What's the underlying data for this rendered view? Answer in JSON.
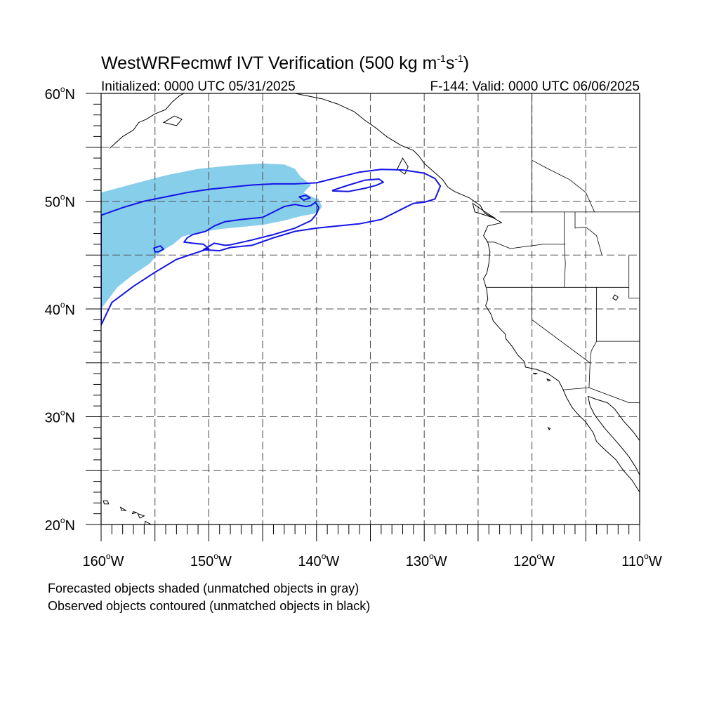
{
  "title": {
    "main": "WestWRFecmwf IVT Verification (500 kg m",
    "sup1": "-1",
    "mid": "s",
    "sup2": "-1",
    "end": ")"
  },
  "subtitle_left": "Initialized: 0000 UTC 05/31/2025",
  "subtitle_right": "F-144: Valid: 0000 UTC 06/06/2025",
  "map": {
    "lon_range": [
      -160,
      -110
    ],
    "lat_range": [
      20,
      60
    ],
    "grid_lon_step": 5,
    "grid_lat_step": 5,
    "lat_labels": [
      {
        "lat": 60,
        "text": "60",
        "suffix": "N"
      },
      {
        "lat": 50,
        "text": "50",
        "suffix": "N"
      },
      {
        "lat": 40,
        "text": "40",
        "suffix": "N"
      },
      {
        "lat": 30,
        "text": "30",
        "suffix": "N"
      },
      {
        "lat": 20,
        "text": "20",
        "suffix": "N"
      }
    ],
    "lon_labels": [
      {
        "lon": -160,
        "text": "160",
        "suffix": "W"
      },
      {
        "lon": -150,
        "text": "150",
        "suffix": "W"
      },
      {
        "lon": -140,
        "text": "140",
        "suffix": "W"
      },
      {
        "lon": -130,
        "text": "130",
        "suffix": "W"
      },
      {
        "lon": -120,
        "text": "120",
        "suffix": "W"
      },
      {
        "lon": -110,
        "text": "110",
        "suffix": "W"
      }
    ],
    "colors": {
      "forecast_fill": "#87CEEB",
      "observed_contour": "#1414E6",
      "coastline": "#000000",
      "grid": "#555555"
    },
    "forecast_object": [
      [
        -160,
        50.8
      ],
      [
        -157,
        51.6
      ],
      [
        -154,
        52.4
      ],
      [
        -151,
        53.0
      ],
      [
        -148,
        53.3
      ],
      [
        -145,
        53.5
      ],
      [
        -143,
        53.4
      ],
      [
        -142,
        53.0
      ],
      [
        -141.5,
        52.3
      ],
      [
        -140.5,
        51.5
      ],
      [
        -141.2,
        50.8
      ],
      [
        -140.2,
        50.3
      ],
      [
        -139.8,
        50.2
      ],
      [
        -139.5,
        49.5
      ],
      [
        -139.9,
        48.9
      ],
      [
        -141.5,
        48.6
      ],
      [
        -143,
        48.2
      ],
      [
        -145,
        47.8
      ],
      [
        -147,
        47.6
      ],
      [
        -149,
        47.4
      ],
      [
        -151,
        47.1
      ],
      [
        -152.5,
        46.7
      ],
      [
        -153.3,
        46.0
      ],
      [
        -154,
        45.6
      ],
      [
        -154.8,
        45.0
      ],
      [
        -155.5,
        44.2
      ],
      [
        -157,
        43.2
      ],
      [
        -158.5,
        42.0
      ],
      [
        -160,
        40.0
      ]
    ],
    "observed_objects": [
      [
        [
          -160,
          48.7
        ],
        [
          -158,
          49.4
        ],
        [
          -156,
          50.0
        ],
        [
          -154,
          50.4
        ],
        [
          -152,
          50.8
        ],
        [
          -150,
          51.1
        ],
        [
          -148,
          51.3
        ],
        [
          -146,
          51.5
        ],
        [
          -144,
          51.6
        ],
        [
          -142,
          51.6
        ],
        [
          -140,
          51.7
        ],
        [
          -138,
          52.2
        ],
        [
          -136,
          52.7
        ],
        [
          -134,
          52.95
        ],
        [
          -132,
          52.9
        ],
        [
          -130,
          52.6
        ],
        [
          -129,
          52.1
        ],
        [
          -128.5,
          51.4
        ],
        [
          -129,
          50.2
        ],
        [
          -130,
          49.9
        ],
        [
          -131,
          49.8
        ],
        [
          -132,
          49.3
        ],
        [
          -134,
          48.3
        ],
        [
          -136,
          47.9
        ],
        [
          -138,
          47.7
        ],
        [
          -140,
          47.5
        ],
        [
          -142,
          47.2
        ],
        [
          -144,
          46.6
        ],
        [
          -146,
          45.9
        ],
        [
          -148,
          45.7
        ],
        [
          -149,
          45.4
        ],
        [
          -150.5,
          45.5
        ],
        [
          -150,
          45.8
        ],
        [
          -149.5,
          46.1
        ],
        [
          -148.5,
          45.9
        ],
        [
          -148,
          45.95
        ],
        [
          -146,
          46.4
        ],
        [
          -144,
          46.9
        ],
        [
          -142,
          47.5
        ],
        [
          -140.5,
          48.2
        ],
        [
          -140,
          48.8
        ],
        [
          -139.8,
          49.4
        ],
        [
          -140.1,
          49.9
        ],
        [
          -140.5,
          49.6
        ],
        [
          -141,
          49.5
        ],
        [
          -142,
          49.7
        ],
        [
          -143,
          49.5
        ],
        [
          -144,
          49.0
        ],
        [
          -145,
          48.5
        ],
        [
          -147,
          48.3
        ],
        [
          -148.5,
          48.1
        ],
        [
          -149.5,
          47.7
        ],
        [
          -150.3,
          47.2
        ],
        [
          -151.5,
          46.9
        ],
        [
          -152,
          46.6
        ],
        [
          -152.3,
          46.2
        ],
        [
          -151.5,
          46.1
        ],
        [
          -150.5,
          46.0
        ],
        [
          -150,
          45.6
        ],
        [
          -151.5,
          45.1
        ],
        [
          -153,
          44.6
        ],
        [
          -155,
          43.4
        ],
        [
          -157,
          42.1
        ],
        [
          -159,
          40.6
        ],
        [
          -160,
          38.5
        ]
      ],
      [
        [
          -138.5,
          51.0
        ],
        [
          -137,
          51.5
        ],
        [
          -135.5,
          51.95
        ],
        [
          -134.2,
          52.05
        ],
        [
          -133.8,
          51.75
        ],
        [
          -134.5,
          51.45
        ],
        [
          -135.5,
          51.2
        ],
        [
          -137,
          50.9
        ],
        [
          -138.5,
          50.95
        ]
      ],
      [
        [
          -154.7,
          45.3
        ],
        [
          -154.2,
          45.55
        ],
        [
          -154.5,
          45.85
        ],
        [
          -155.1,
          45.65
        ],
        [
          -155.0,
          45.3
        ],
        [
          -154.7,
          45.3
        ]
      ],
      [
        [
          -141.6,
          50.4
        ],
        [
          -141.0,
          50.55
        ],
        [
          -140.6,
          50.3
        ],
        [
          -141.2,
          50.1
        ],
        [
          -141.6,
          50.4
        ]
      ]
    ],
    "coastline": [
      [
        -159.2,
        54.9
      ],
      [
        -158.0,
        56.0
      ],
      [
        -157.0,
        56.6
      ],
      [
        -156.5,
        57.3
      ],
      [
        -155.8,
        57.6
      ],
      [
        -155.0,
        58.1
      ],
      [
        -154.0,
        58.5
      ],
      [
        -153.4,
        59.2
      ],
      [
        -152.7,
        59.8
      ],
      [
        -152.3,
        60.0
      ]
    ],
    "coastline_east": [
      [
        -142.0,
        60.0
      ],
      [
        -140.5,
        59.7
      ],
      [
        -139.5,
        59.5
      ],
      [
        -138.0,
        59.0
      ],
      [
        -136.5,
        58.3
      ],
      [
        -135.5,
        57.5
      ],
      [
        -134.5,
        56.8
      ],
      [
        -133.5,
        56.0
      ],
      [
        -132.2,
        55.2
      ],
      [
        -131.0,
        54.7
      ],
      [
        -130.5,
        54.2
      ],
      [
        -130.0,
        53.5
      ],
      [
        -129.2,
        52.8
      ],
      [
        -128.3,
        52.0
      ],
      [
        -127.8,
        51.3
      ],
      [
        -127.2,
        50.9
      ],
      [
        -125.8,
        50.3
      ],
      [
        -124.8,
        49.6
      ],
      [
        -124.4,
        48.9
      ],
      [
        -123.5,
        48.4
      ],
      [
        -122.8,
        48.0
      ],
      [
        -124.1,
        47.7
      ],
      [
        -124.5,
        46.8
      ],
      [
        -124.1,
        46.2
      ],
      [
        -123.9,
        45.3
      ],
      [
        -124.0,
        44.2
      ],
      [
        -124.2,
        43.3
      ],
      [
        -124.5,
        42.8
      ],
      [
        -124.2,
        41.8
      ],
      [
        -124.1,
        40.9
      ],
      [
        -124.3,
        40.3
      ],
      [
        -123.8,
        39.5
      ],
      [
        -123.6,
        38.9
      ],
      [
        -122.9,
        38.1
      ],
      [
        -122.5,
        37.7
      ],
      [
        -122.4,
        37.2
      ],
      [
        -121.9,
        36.6
      ],
      [
        -121.3,
        35.7
      ],
      [
        -120.7,
        35.1
      ],
      [
        -120.6,
        34.6
      ],
      [
        -119.6,
        34.4
      ],
      [
        -118.5,
        34.0
      ],
      [
        -117.5,
        33.3
      ],
      [
        -117.1,
        32.5
      ],
      [
        -116.8,
        31.8
      ],
      [
        -116.3,
        30.9
      ],
      [
        -115.8,
        30.3
      ],
      [
        -115.0,
        29.5
      ],
      [
        -114.3,
        28.5
      ],
      [
        -114.0,
        27.7
      ],
      [
        -113.3,
        27.0
      ],
      [
        -112.2,
        26.0
      ],
      [
        -111.5,
        25.0
      ],
      [
        -110.7,
        24.1
      ],
      [
        -110.0,
        23.0
      ]
    ],
    "gulf_coast": [
      [
        -114.8,
        31.9
      ],
      [
        -114.6,
        31.0
      ],
      [
        -114.2,
        30.2
      ],
      [
        -113.3,
        29.0
      ],
      [
        -112.6,
        28.2
      ],
      [
        -111.9,
        27.4
      ],
      [
        -111.0,
        26.3
      ],
      [
        -110.3,
        25.2
      ],
      [
        -110.0,
        24.6
      ]
    ],
    "mexico_coast_east": [
      [
        -110.0,
        27.8
      ],
      [
        -110.6,
        28.6
      ],
      [
        -111.5,
        29.6
      ],
      [
        -112.3,
        30.7
      ],
      [
        -113.0,
        31.3
      ],
      [
        -114.0,
        31.6
      ],
      [
        -114.8,
        31.9
      ]
    ],
    "borders": [
      [
        [
          -123.0,
          49.0
        ],
        [
          -110.0,
          49.0
        ]
      ],
      [
        [
          -124.2,
          46.2
        ],
        [
          -123.5,
          46.2
        ],
        [
          -122.0,
          45.6
        ],
        [
          -119.0,
          46.0
        ],
        [
          -116.9,
          46.0
        ]
      ],
      [
        [
          -117.0,
          49.0
        ],
        [
          -117.0,
          46.0
        ],
        [
          -116.9,
          44.2
        ],
        [
          -117.0,
          42.0
        ]
      ],
      [
        [
          -124.2,
          42.0
        ],
        [
          -111.0,
          42.0
        ]
      ],
      [
        [
          -120.0,
          42.0
        ],
        [
          -120.0,
          39.0
        ],
        [
          -114.6,
          35.0
        ],
        [
          -114.7,
          32.7
        ]
      ],
      [
        [
          -114.0,
          42.0
        ],
        [
          -114.0,
          37.0
        ],
        [
          -114.5,
          36.1
        ],
        [
          -114.6,
          35.0
        ]
      ],
      [
        [
          -114.0,
          37.0
        ],
        [
          -110.0,
          37.0
        ]
      ],
      [
        [
          -111.0,
          45.0
        ],
        [
          -111.0,
          41.0
        ],
        [
          -110.0,
          41.0
        ]
      ],
      [
        [
          -117.1,
          32.5
        ],
        [
          -114.7,
          32.7
        ],
        [
          -111.0,
          31.3
        ],
        [
          -110.0,
          31.3
        ]
      ],
      [
        [
          -116.0,
          49.0
        ],
        [
          -116.0,
          47.5
        ],
        [
          -115.0,
          47.6
        ],
        [
          -114.0,
          46.8
        ],
        [
          -113.5,
          45.0
        ]
      ]
    ],
    "canada_interior": [
      [
        [
          -120.0,
          60.0
        ],
        [
          -120.0,
          49.0
        ]
      ],
      [
        [
          -120.0,
          53.8
        ],
        [
          -118.5,
          53.0
        ],
        [
          -116.5,
          52.0
        ],
        [
          -115.0,
          50.8
        ],
        [
          -114.2,
          49.0
        ]
      ]
    ],
    "islands": [
      [
        [
          -159.8,
          22.2
        ],
        [
          -159.4,
          22.2
        ],
        [
          -159.3,
          21.9
        ],
        [
          -159.7,
          21.9
        ],
        [
          -159.8,
          22.2
        ]
      ],
      [
        [
          -158.2,
          21.6
        ],
        [
          -157.7,
          21.3
        ],
        [
          -158.1,
          21.3
        ],
        [
          -158.2,
          21.6
        ]
      ],
      [
        [
          -157.0,
          21.2
        ],
        [
          -156.7,
          21.1
        ],
        [
          -157.1,
          21.0
        ],
        [
          -157.0,
          21.2
        ]
      ],
      [
        [
          -156.6,
          21.0
        ],
        [
          -156.0,
          20.8
        ],
        [
          -156.4,
          20.6
        ],
        [
          -156.6,
          21.0
        ]
      ],
      [
        [
          -155.9,
          20.3
        ],
        [
          -155.0,
          19.8
        ],
        [
          -155.6,
          19.0
        ],
        [
          -156.0,
          19.7
        ],
        [
          -155.9,
          20.3
        ]
      ],
      [
        [
          -125.5,
          49.8
        ],
        [
          -124.5,
          49.1
        ],
        [
          -123.4,
          48.4
        ],
        [
          -124.0,
          48.6
        ],
        [
          -125.3,
          49.0
        ],
        [
          -125.5,
          49.8
        ]
      ],
      [
        [
          -132.0,
          54.0
        ],
        [
          -131.5,
          53.2
        ],
        [
          -131.8,
          52.5
        ],
        [
          -132.5,
          53.0
        ],
        [
          -132.0,
          54.0
        ]
      ],
      [
        [
          -153.2,
          57.9
        ],
        [
          -152.5,
          57.6
        ],
        [
          -153.0,
          57.0
        ],
        [
          -154.2,
          57.3
        ],
        [
          -153.2,
          57.9
        ]
      ],
      [
        [
          -118.6,
          33.5
        ],
        [
          -118.3,
          33.4
        ],
        [
          -118.5,
          33.3
        ],
        [
          -118.6,
          33.5
        ]
      ],
      [
        [
          -119.9,
          34.05
        ],
        [
          -119.5,
          34.0
        ],
        [
          -119.7,
          33.95
        ],
        [
          -119.9,
          34.05
        ]
      ],
      [
        [
          -118.5,
          29.0
        ],
        [
          -118.3,
          28.9
        ],
        [
          -118.4,
          28.8
        ],
        [
          -118.5,
          29.0
        ]
      ],
      [
        [
          -112.3,
          41.3
        ],
        [
          -112.0,
          41.1
        ],
        [
          -112.2,
          40.8
        ],
        [
          -112.5,
          41.0
        ],
        [
          -112.3,
          41.3
        ]
      ]
    ]
  },
  "footnotes": [
    "Forecasted objects shaded (unmatched objects in gray)",
    "Observed objects contoured (unmatched objects in black)"
  ]
}
